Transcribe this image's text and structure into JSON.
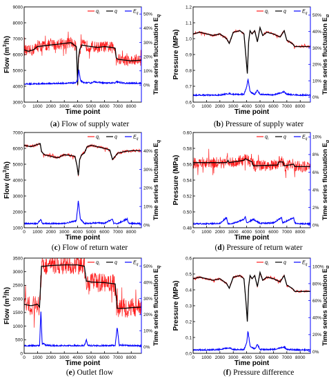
{
  "colors": {
    "qi": "#ff1a1a",
    "q": "#000000",
    "eq": "#0000ff",
    "axis_right": "#0000ff"
  },
  "legend": {
    "qi": "q",
    "qi_sub": "i",
    "q": "q",
    "eq": "E",
    "eq_sub": "q"
  },
  "chart_data": [
    {
      "type": "line",
      "panel": "a",
      "caption": {
        "prefix": "(a)",
        "text": "Flow of supply water"
      },
      "xlabel": "Time point",
      "ylabel_main": "Flow (m",
      "ylabel_sup": "3",
      "ylabel_tail": "/h)",
      "y2label": "Time series fluctuation E",
      "y2label_sub": "q",
      "xlim": [
        0,
        8760
      ],
      "ylim": [
        3000,
        9000
      ],
      "y2lim": [
        -0.12,
        0.55
      ],
      "xticks": [
        0,
        1000,
        2000,
        3000,
        4000,
        5000,
        6000,
        7000,
        8000
      ],
      "yticks": [
        3000,
        4000,
        5000,
        6000,
        7000,
        8000,
        9000
      ],
      "ytick_labels": [
        "3000",
        "4000",
        "5000",
        "6000",
        "7000",
        "8000",
        "9000"
      ],
      "y2ticks": [
        0,
        0.1,
        0.2,
        0.3,
        0.4,
        0.5
      ],
      "y2tick_labels": [
        "0%",
        "10%",
        "20%",
        "30%",
        "40%",
        "50%"
      ],
      "series": [
        {
          "name": "q",
          "x": [
            0,
            300,
            700,
            1000,
            1500,
            2000,
            2500,
            3000,
            3500,
            3900,
            4000,
            4050,
            4150,
            4300,
            4600,
            5000,
            5500,
            6000,
            6500,
            6800,
            6880,
            7000,
            7500,
            8000,
            8760
          ],
          "y": [
            6300,
            6200,
            6300,
            6500,
            6550,
            6600,
            6650,
            6700,
            6750,
            6500,
            4100,
            5700,
            6300,
            6600,
            6550,
            6500,
            6450,
            6500,
            6450,
            6400,
            5800,
            5700,
            5650,
            5600,
            5650
          ]
        },
        {
          "name": "Eq",
          "x": [
            0,
            1000,
            2000,
            3000,
            3800,
            4000,
            4080,
            4200,
            4400,
            5000,
            5200,
            6000,
            6800,
            6900,
            7500,
            8760
          ],
          "y": [
            0.005,
            0.006,
            0.008,
            0.01,
            0.012,
            0.03,
            0.11,
            0.03,
            0.015,
            0.012,
            0.02,
            0.012,
            0.012,
            0.02,
            0.01,
            0.01
          ]
        }
      ]
    },
    {
      "type": "line",
      "panel": "b",
      "caption": {
        "prefix": "(b)",
        "text": "Pressure of supply water"
      },
      "xlabel": "Time point",
      "ylabel_main": "Pressure (MPa)",
      "ylabel_sup": "",
      "ylabel_tail": "",
      "y2label": "Time series fluctuation E",
      "y2label_sub": "q",
      "xlim": [
        0,
        8760
      ],
      "ylim": [
        0.6,
        1.2
      ],
      "y2lim": [
        -0.03,
        0.55
      ],
      "xticks": [
        0,
        1000,
        2000,
        3000,
        4000,
        5000,
        6000,
        7000,
        8000
      ],
      "yticks": [
        0.6,
        0.7,
        0.8,
        0.9,
        1.0,
        1.1,
        1.2
      ],
      "ytick_labels": [
        "0.6",
        "0.7",
        "0.8",
        "0.9",
        "1.0",
        "1.1",
        "1.2"
      ],
      "y2ticks": [
        0,
        0.1,
        0.2,
        0.3,
        0.4,
        0.5
      ],
      "y2tick_labels": [
        "0%",
        "10%",
        "20%",
        "30%",
        "40%",
        "50%"
      ],
      "series": [
        {
          "name": "q",
          "x": [
            0,
            500,
            1000,
            1500,
            2000,
            2500,
            2700,
            3000,
            3500,
            3800,
            3950,
            4050,
            4150,
            4250,
            4400,
            4600,
            4800,
            5000,
            5200,
            5500,
            6000,
            6500,
            6800,
            7000,
            7400,
            7600,
            8000,
            8760
          ],
          "y": [
            1.03,
            1.04,
            1.03,
            1.02,
            1.03,
            1.0,
            0.97,
            1.04,
            1.05,
            1.03,
            0.88,
            0.78,
            0.98,
            1.05,
            1.03,
            1.05,
            0.98,
            1.07,
            1.02,
            1.04,
            1.03,
            1.01,
            1.05,
            0.99,
            0.97,
            0.95,
            0.95,
            0.95
          ]
        },
        {
          "name": "Eq",
          "x": [
            0,
            1000,
            2000,
            2700,
            3000,
            3800,
            4000,
            4100,
            4250,
            4600,
            4800,
            5000,
            6000,
            6800,
            7000,
            8000,
            8760
          ],
          "y": [
            0.01,
            0.01,
            0.01,
            0.02,
            0.015,
            0.015,
            0.06,
            0.11,
            0.03,
            0.015,
            0.04,
            0.015,
            0.012,
            0.03,
            0.015,
            0.01,
            0.01
          ]
        }
      ]
    },
    {
      "type": "line",
      "panel": "c",
      "caption": {
        "prefix": "(c)",
        "text": "Flow of return water"
      },
      "xlabel": "Time point",
      "ylabel_main": "Flow (m",
      "ylabel_sup": "3",
      "ylabel_tail": "/h)",
      "y2label": "Time series fluctuation E",
      "y2label_sub": "q",
      "xlim": [
        0,
        8760
      ],
      "ylim": [
        1000,
        7000
      ],
      "y2lim": [
        -0.015,
        0.5
      ],
      "xticks": [
        0,
        1000,
        2000,
        3000,
        4000,
        5000,
        6000,
        7000,
        8000
      ],
      "yticks": [
        1000,
        2000,
        3000,
        4000,
        5000,
        6000,
        7000
      ],
      "ytick_labels": [
        "1000",
        "2000",
        "3000",
        "4000",
        "5000",
        "6000",
        "7000"
      ],
      "y2ticks": [
        0,
        0.1,
        0.2,
        0.3,
        0.4
      ],
      "y2tick_labels": [
        "0%",
        "10%",
        "20%",
        "30%",
        "40%"
      ],
      "series": [
        {
          "name": "q",
          "x": [
            0,
            500,
            1000,
            1200,
            1300,
            1500,
            2000,
            2500,
            3000,
            3500,
            3800,
            3950,
            4050,
            4150,
            4300,
            4500,
            4700,
            5000,
            5500,
            6000,
            6400,
            6600,
            6800,
            7000,
            7500,
            8000,
            8760
          ],
          "y": [
            6200,
            6100,
            6250,
            6300,
            5800,
            5600,
            5500,
            5400,
            5600,
            5550,
            5500,
            4900,
            4300,
            5300,
            5600,
            5700,
            6100,
            6200,
            6100,
            6000,
            5900,
            5300,
            5500,
            5700,
            5800,
            5850,
            5850
          ]
        },
        {
          "name": "Eq",
          "x": [
            0,
            1000,
            1250,
            1350,
            2000,
            3000,
            3900,
            4050,
            4200,
            4500,
            5000,
            5500,
            6000,
            6600,
            6700,
            7000,
            7700,
            7800,
            8760
          ],
          "y": [
            0.005,
            0.005,
            0.03,
            0.005,
            0.005,
            0.006,
            0.02,
            0.13,
            0.03,
            0.006,
            0.006,
            0.01,
            0.006,
            0.03,
            0.005,
            0.006,
            0.03,
            0.006,
            0.005
          ]
        }
      ]
    },
    {
      "type": "line",
      "panel": "d",
      "caption": {
        "prefix": "(d)",
        "text": "Pressure of return water"
      },
      "xlabel": "Time point",
      "ylabel_main": "Pressure (MPa)",
      "ylabel_sup": "",
      "ylabel_tail": "",
      "y2label": "Time series fluctuation E",
      "y2label_sub": "q",
      "xlim": [
        0,
        8760
      ],
      "ylim": [
        0.48,
        0.6
      ],
      "y2lim": [
        -0.003,
        0.105
      ],
      "xticks": [
        0,
        1000,
        2000,
        3000,
        4000,
        5000,
        6000,
        7000,
        8000
      ],
      "yticks": [
        0.48,
        0.5,
        0.52,
        0.54,
        0.56,
        0.58,
        0.6
      ],
      "ytick_labels": [
        "0.48",
        "0.50",
        "0.52",
        "0.54",
        "0.56",
        "0.58",
        "0.60"
      ],
      "y2ticks": [
        0,
        0.02,
        0.04,
        0.06,
        0.08,
        0.1
      ],
      "y2tick_labels": [
        "0%",
        "2%",
        "4%",
        "6%",
        "8%",
        "10%"
      ],
      "series": [
        {
          "name": "q",
          "x": [
            0,
            2500,
            2600,
            2700,
            3800,
            3900,
            4400,
            4500,
            6300,
            6400,
            6700,
            6800,
            7500,
            7600,
            8760
          ],
          "y": [
            0.562,
            0.562,
            0.565,
            0.562,
            0.565,
            0.567,
            0.563,
            0.558,
            0.559,
            0.563,
            0.563,
            0.558,
            0.56,
            0.557,
            0.557
          ]
        },
        {
          "name": "Eq",
          "x": [
            0,
            1000,
            2000,
            2500,
            2600,
            3000,
            3800,
            3900,
            4000,
            4500,
            5000,
            6000,
            6600,
            6700,
            7500,
            7600,
            8000,
            8760
          ],
          "y": [
            0.001,
            0.001,
            0.0015,
            0.008,
            0.001,
            0.0015,
            0.006,
            0.009,
            0.002,
            0.006,
            0.0015,
            0.002,
            0.008,
            0.002,
            0.008,
            0.002,
            0.001,
            0.001
          ]
        }
      ]
    },
    {
      "type": "line",
      "panel": "e",
      "caption": {
        "prefix": "(e)",
        "text": "Outlet flow"
      },
      "xlabel": "Time point",
      "ylabel_main": "Flow (m",
      "ylabel_sup": "3",
      "ylabel_tail": "/h)",
      "y2label": "Time series fluctuation E",
      "y2label_sub": "q",
      "xlim": [
        0,
        8760
      ],
      "ylim": [
        0,
        3500
      ],
      "y2lim": [
        -0.04,
        0.55
      ],
      "xticks": [
        0,
        1000,
        2000,
        3000,
        4000,
        5000,
        6000,
        7000,
        8000
      ],
      "yticks": [
        0,
        500,
        1000,
        1500,
        2000,
        2500,
        3000,
        3500
      ],
      "ytick_labels": [
        "0",
        "500",
        "1000",
        "1500",
        "2000",
        "2500",
        "3000",
        "3500"
      ],
      "y2ticks": [
        0,
        0.1,
        0.2,
        0.3,
        0.4,
        0.5
      ],
      "y2tick_labels": [
        "0%",
        "10%",
        "20%",
        "30%",
        "40%",
        "50%"
      ],
      "series": [
        {
          "name": "q",
          "x": [
            0,
            500,
            1000,
            1150,
            1300,
            1500,
            2000,
            3000,
            4000,
            4500,
            4650,
            4800,
            5000,
            6000,
            6800,
            6950,
            7100,
            7500,
            8000,
            8760
          ],
          "y": [
            1800,
            1750,
            1800,
            1700,
            3200,
            3200,
            3230,
            3250,
            3250,
            3200,
            2650,
            2650,
            2620,
            2600,
            2550,
            1650,
            1650,
            1650,
            1680,
            1700
          ]
        },
        {
          "name": "Eq",
          "x": [
            0,
            1000,
            1150,
            1250,
            1350,
            1450,
            1600,
            2000,
            3000,
            4000,
            4500,
            4650,
            4750,
            5000,
            6000,
            6800,
            6950,
            7100,
            8000,
            8760
          ],
          "y": [
            0.005,
            0.005,
            0.006,
            0.22,
            0.01,
            0.02,
            0.008,
            0.005,
            0.005,
            0.005,
            0.006,
            0.04,
            0.008,
            0.005,
            0.005,
            0.006,
            0.12,
            0.008,
            0.005,
            0.005
          ]
        }
      ]
    },
    {
      "type": "line",
      "panel": "f",
      "caption": {
        "prefix": "(f)",
        "text": "Pressure difference"
      },
      "xlabel": "Time point",
      "ylabel_main": "Pressure (MPa)",
      "ylabel_sup": "",
      "ylabel_tail": "",
      "y2label": "Time series fluctuation E",
      "y2label_sub": "q",
      "xlim": [
        0,
        8760
      ],
      "ylim": [
        0,
        0.6
      ],
      "y2lim": [
        -0.02,
        1.1
      ],
      "xticks": [
        0,
        1000,
        2000,
        3000,
        4000,
        5000,
        6000,
        7000,
        8000
      ],
      "yticks": [
        0,
        0.1,
        0.2,
        0.3,
        0.4,
        0.5,
        0.6
      ],
      "ytick_labels": [
        "0.0",
        "0.1",
        "0.2",
        "0.3",
        "0.4",
        "0.5",
        "0.6"
      ],
      "y2ticks": [
        0,
        0.2,
        0.4,
        0.6,
        0.8,
        1.0
      ],
      "y2tick_labels": [
        "0%",
        "20%",
        "40%",
        "60%",
        "80%",
        "100%"
      ],
      "series": [
        {
          "name": "q",
          "x": [
            0,
            500,
            1000,
            1500,
            2000,
            2500,
            2700,
            3000,
            3500,
            3800,
            3950,
            4050,
            4150,
            4250,
            4400,
            4600,
            4800,
            5000,
            5200,
            5500,
            6000,
            6500,
            6800,
            7000,
            7400,
            7600,
            8000,
            8760
          ],
          "y": [
            0.47,
            0.48,
            0.47,
            0.46,
            0.47,
            0.44,
            0.41,
            0.48,
            0.49,
            0.47,
            0.32,
            0.2,
            0.42,
            0.49,
            0.47,
            0.49,
            0.42,
            0.51,
            0.46,
            0.48,
            0.47,
            0.45,
            0.49,
            0.43,
            0.41,
            0.39,
            0.39,
            0.39
          ]
        },
        {
          "name": "Eq",
          "x": [
            0,
            1000,
            2000,
            2700,
            3000,
            3800,
            4000,
            4100,
            4250,
            4600,
            4800,
            5000,
            6000,
            6800,
            7000,
            8000,
            8760
          ],
          "y": [
            0.015,
            0.015,
            0.02,
            0.04,
            0.02,
            0.02,
            0.1,
            0.24,
            0.06,
            0.025,
            0.08,
            0.02,
            0.02,
            0.05,
            0.02,
            0.015,
            0.015
          ]
        }
      ]
    }
  ]
}
